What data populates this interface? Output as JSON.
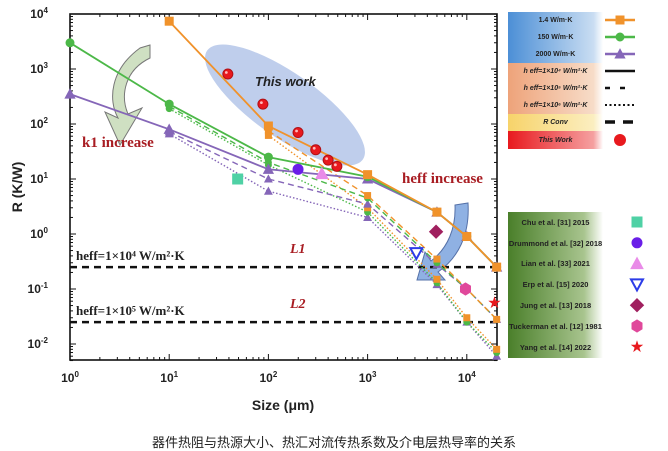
{
  "caption": "器件热阻与热源大小、热汇对流传热系数及介电层热导率的关系",
  "chart_data": {
    "type": "line",
    "title": "",
    "xlabel": "Size (μm)",
    "ylabel": "R (K/W)",
    "xscale": "log",
    "yscale": "log",
    "xlim": [
      1,
      20000
    ],
    "ylim": [
      0.005,
      10000
    ],
    "x_tick_exponents": [
      0,
      1,
      2,
      3,
      4
    ],
    "y_tick_exponents": [
      4,
      3,
      2,
      1,
      0,
      -1,
      -2
    ],
    "colors": {
      "k1.4": "#f0922b",
      "k150": "#4cb848",
      "k2000": "#8566b8",
      "this_work": "#e8191e"
    },
    "series": [
      {
        "name": "1.4 W/m·K, h_eff=1×10^4",
        "color": "#f0922b",
        "style": "solid",
        "marker": "square",
        "x": [
          10,
          100,
          1000,
          5000,
          10000,
          20000
        ],
        "y": [
          7400,
          92,
          12,
          2.5,
          0.9,
          0.25
        ]
      },
      {
        "name": "150 W/m·K, h_eff=1×10^4",
        "color": "#4cb848",
        "style": "solid",
        "marker": "circle",
        "x": [
          1,
          10,
          100,
          1000,
          5000,
          10000,
          20000
        ],
        "y": [
          3000,
          230,
          25,
          11,
          2.5,
          0.9,
          0.25
        ]
      },
      {
        "name": "2000 W/m·K, h_eff=1×10^4",
        "color": "#8566b8",
        "style": "solid",
        "marker": "triangle",
        "x": [
          1,
          10,
          100,
          1000,
          5000,
          10000,
          20000
        ],
        "y": [
          350,
          80,
          15,
          10,
          2.5,
          0.9,
          0.25
        ]
      },
      {
        "name": "1.4 W/m·K, h_eff=1×10^5",
        "color": "#f0922b",
        "style": "dashed",
        "marker": "square",
        "x": [
          100,
          1000,
          5000,
          10000,
          20000
        ],
        "y": [
          75,
          5,
          0.35,
          0.1,
          0.028
        ]
      },
      {
        "name": "150 W/m·K, h_eff=1×10^5",
        "color": "#4cb848",
        "style": "dashed",
        "marker": "circle",
        "x": [
          10,
          100,
          1000,
          5000,
          10000,
          20000
        ],
        "y": [
          210,
          20,
          4.5,
          0.3,
          0.1,
          0.028
        ]
      },
      {
        "name": "2000 W/m·K, h_eff=1×10^5",
        "color": "#8566b8",
        "style": "dashed",
        "marker": "triangle",
        "x": [
          10,
          100,
          1000,
          5000,
          10000,
          20000
        ],
        "y": [
          72,
          10,
          3.5,
          0.28,
          0.1,
          0.028
        ]
      },
      {
        "name": "1.4 W/m·K, h_eff=1×10^6",
        "color": "#f0922b",
        "style": "dotted",
        "marker": "square",
        "x": [
          100,
          1000,
          5000,
          10000,
          20000
        ],
        "y": [
          62,
          3,
          0.15,
          0.03,
          0.008
        ]
      },
      {
        "name": "150 W/m·K, h_eff=1×10^6",
        "color": "#4cb848",
        "style": "dotted",
        "marker": "circle",
        "x": [
          10,
          100,
          1000,
          5000,
          10000,
          20000
        ],
        "y": [
          190,
          18,
          2.5,
          0.13,
          0.025,
          0.007
        ]
      },
      {
        "name": "2000 W/m·K, h_eff=1×10^6",
        "color": "#8566b8",
        "style": "dotted",
        "marker": "triangle",
        "x": [
          10,
          100,
          1000,
          5000,
          10000,
          20000
        ],
        "y": [
          66,
          6,
          2,
          0.12,
          0.025,
          0.006
        ]
      }
    ],
    "this_work": {
      "x": [
        39,
        88,
        199,
        300,
        400,
        490
      ],
      "y": [
        810,
        230,
        70,
        34,
        22,
        17
      ]
    },
    "literature": [
      {
        "label": "Chu et al. [31] 2015",
        "x": 49,
        "y": 10,
        "color": "#4fd1a5",
        "shape": "square"
      },
      {
        "label": "Drummond et al. [32] 2018",
        "x": 199,
        "y": 15,
        "color": "#6a1ee8",
        "shape": "circle"
      },
      {
        "label": "Lian et al. [33] 2021",
        "x": 346,
        "y": 12.5,
        "color": "#e98be8",
        "shape": "triangle"
      },
      {
        "label": "Erp et al. [15] 2020",
        "x": 3100,
        "y": 0.45,
        "color": "#2c3ce8",
        "shape": "triangle-down"
      },
      {
        "label": "Jung et al. [13] 2018",
        "x": 4900,
        "y": 1.1,
        "color": "#a0205f",
        "shape": "diamond"
      },
      {
        "label": "Tuckerman et al. [12] 1981",
        "x": 9700,
        "y": 0.1,
        "color": "#e0489b",
        "shape": "hexagon"
      },
      {
        "label": "Yang et al. [14] 2022",
        "x": 19000,
        "y": 0.056,
        "color": "#e8191e",
        "shape": "star"
      }
    ],
    "reference_lines": [
      {
        "label": "h_eff=1×10^4 W/m²·K",
        "name": "L1",
        "y": 0.25
      },
      {
        "label": "h_eff=1×10^5 W/m²·K",
        "name": "L2",
        "y": 0.025
      }
    ],
    "annotations": {
      "this_work": "This work",
      "k1": "k1 increase",
      "heff": "heff increase",
      "L1": "L1",
      "L2": "L2"
    },
    "legend": {
      "placement": "right",
      "conductivity": [
        "1.4 W/m·K",
        "150 W/m·K",
        "2000 W/m·K"
      ],
      "heff": [
        "h eff=1×10⁴ W/m²·K",
        "h eff=1×10⁵ W/m²·K",
        "h eff=1×10⁶ W/m²·K"
      ],
      "rconv": "R Conv",
      "this_work": "This Work"
    }
  }
}
